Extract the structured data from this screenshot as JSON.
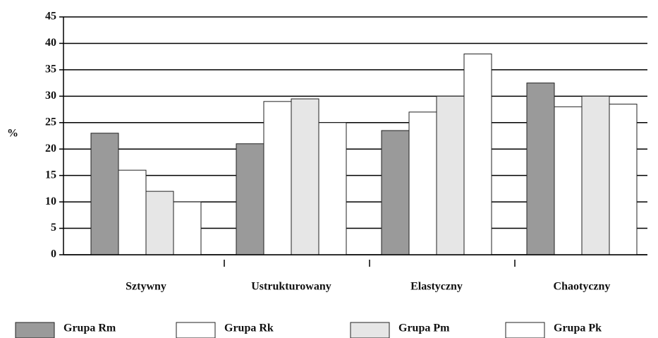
{
  "chart_data": {
    "type": "bar",
    "y_label": "%",
    "categories": [
      "Sztywny",
      "Ustrukturowany",
      "Elastyczny",
      "Chaotyczny"
    ],
    "series": [
      {
        "name": "Grupa Rm",
        "color": "#9a9a9a",
        "values": [
          23,
          21,
          23.5,
          32.5
        ]
      },
      {
        "name": "Grupa Rk",
        "color": "#ffffff",
        "values": [
          16,
          29,
          27,
          28
        ]
      },
      {
        "name": "Grupa Pm",
        "color": "#e6e6e6",
        "values": [
          12,
          29.5,
          30,
          30
        ]
      },
      {
        "name": "Grupa Pk",
        "color": "#ffffff",
        "values": [
          10,
          25,
          38,
          28.5
        ]
      }
    ],
    "ylim": [
      0,
      45
    ],
    "yticks": [
      0,
      5,
      10,
      15,
      20,
      25,
      30,
      35,
      40,
      45
    ],
    "grid": true,
    "legend": "bottom"
  }
}
